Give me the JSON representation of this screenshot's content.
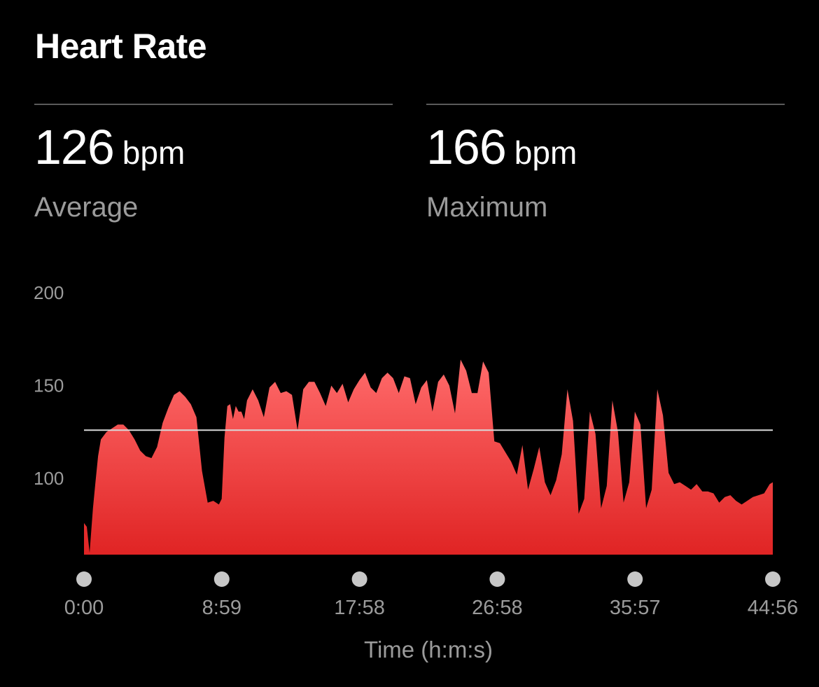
{
  "header": {
    "title": "Heart Rate"
  },
  "stats": {
    "average": {
      "value": "126",
      "unit": "bpm",
      "label": "Average"
    },
    "maximum": {
      "value": "166",
      "unit": "bpm",
      "label": "Maximum"
    }
  },
  "colors": {
    "background": "#000000",
    "fill_top": "#ff6b6b",
    "fill_bottom": "#e02424",
    "average_line": "#d9d9d9",
    "secondary_text": "#9b9b9b",
    "divider": "#5a5a5a",
    "tick_dot": "#c7c7c7"
  },
  "chart_data": {
    "type": "area",
    "xlabel": "Time (h:m:s)",
    "ylabel": "",
    "ylim": [
      59,
      200
    ],
    "yticks": [
      200,
      150,
      100
    ],
    "xticks": [
      "0:00",
      "8:59",
      "17:58",
      "26:58",
      "35:57",
      "44:56"
    ],
    "xlim_seconds": [
      0,
      2696
    ],
    "average_line_bpm": 126,
    "series": [
      {
        "x_seconds": [
          0,
          11,
          22,
          35,
          44,
          55,
          66,
          88,
          110,
          132,
          154,
          176,
          198,
          220,
          242,
          264,
          286,
          308,
          330,
          352,
          374,
          396,
          418,
          440,
          462,
          484,
          506,
          528,
          539,
          550,
          561,
          572,
          583,
          594,
          605,
          616,
          627,
          638,
          649,
          660,
          682,
          704,
          726,
          748,
          770,
          792,
          814,
          836,
          858,
          880,
          902,
          924,
          946,
          968,
          990,
          1012,
          1034,
          1056,
          1078,
          1100,
          1122,
          1144,
          1166,
          1188,
          1210,
          1232,
          1254,
          1276,
          1298,
          1320,
          1342,
          1364,
          1386,
          1408,
          1430,
          1452,
          1474,
          1496,
          1518,
          1540,
          1562,
          1584,
          1606,
          1628,
          1650,
          1672,
          1694,
          1716,
          1738,
          1760,
          1782,
          1804,
          1826,
          1848,
          1870,
          1892,
          1914,
          1936,
          1958,
          1980,
          2002,
          2024,
          2046,
          2068,
          2090,
          2112,
          2134,
          2156,
          2178,
          2200,
          2222,
          2244,
          2266,
          2288,
          2310,
          2332,
          2354,
          2376,
          2398,
          2420,
          2442,
          2464,
          2486,
          2508,
          2530,
          2552,
          2574,
          2596,
          2618,
          2640,
          2662,
          2684,
          2696
        ],
        "values": [
          76,
          74,
          60,
          84,
          97,
          112,
          121,
          125,
          127,
          129,
          129,
          126,
          121,
          115,
          112,
          111,
          117,
          130,
          138,
          145,
          147,
          144,
          140,
          133,
          104,
          87,
          88,
          86,
          89,
          122,
          139,
          140,
          132,
          139,
          136,
          136,
          132,
          142,
          145,
          148,
          142,
          133,
          149,
          152,
          146,
          147,
          145,
          126,
          148,
          152,
          152,
          146,
          139,
          150,
          146,
          151,
          141,
          148,
          153,
          157,
          149,
          146,
          154,
          157,
          154,
          146,
          155,
          154,
          140,
          149,
          153,
          136,
          152,
          156,
          150,
          135,
          164,
          158,
          146,
          146,
          163,
          157,
          120,
          119,
          114,
          109,
          102,
          118,
          94,
          105,
          117,
          98,
          91,
          99,
          113,
          148,
          131,
          81,
          89,
          136,
          124,
          84,
          96,
          142,
          125,
          87,
          98,
          136,
          129,
          84,
          94,
          148,
          134,
          103,
          97,
          98,
          96,
          94,
          97,
          93,
          93,
          92,
          87,
          90,
          91,
          88,
          86,
          88,
          90,
          91,
          92,
          97,
          98
        ]
      }
    ]
  }
}
